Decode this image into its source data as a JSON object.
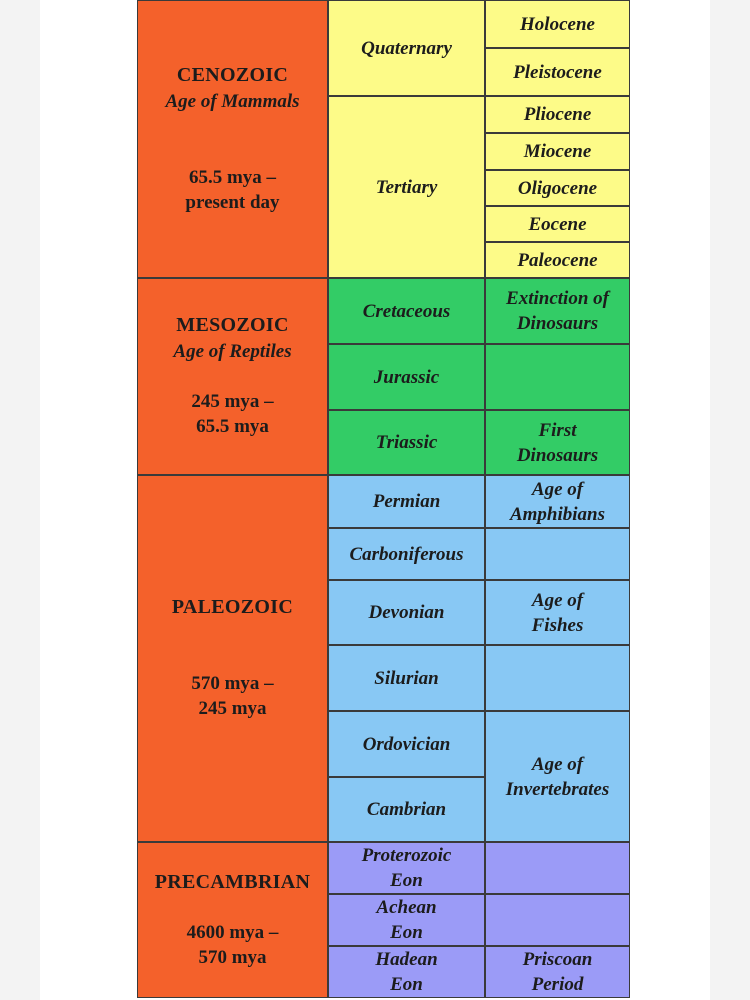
{
  "eras": [
    {
      "name": "CENOZOIC",
      "subtitle": "Age of Mammals",
      "dates": "65.5 mya –\npresent day",
      "color": "#fdfb88",
      "periods": [
        "Quaternary",
        "Tertiary"
      ],
      "epochs": [
        "Holocene",
        "Pleistocene",
        "Pliocene",
        "Miocene",
        "Oligocene",
        "Eocene",
        "Paleocene"
      ]
    },
    {
      "name": "MESOZOIC",
      "subtitle": "Age of Reptiles",
      "dates": "245 mya –\n65.5 mya",
      "color": "#33cc66",
      "periods": [
        "Cretaceous",
        "Jurassic",
        "Triassic"
      ],
      "epochs": [
        "Extinction of\nDinosaurs",
        null,
        "First\nDinosaurs"
      ]
    },
    {
      "name": "PALEOZOIC",
      "dates": "570 mya –\n245 mya",
      "color": "#88c8f4",
      "periods": [
        "Permian",
        "Carboniferous",
        "Devonian",
        "Silurian",
        "Ordovician",
        "Cambrian"
      ],
      "epochs": [
        "Age of\nAmphibians",
        null,
        "Age of\nFishes",
        null,
        "Age of\nInvertebrates"
      ]
    },
    {
      "name": "PRECAMBRIAN",
      "dates": "4600 mya –\n570 mya",
      "color": "#9b9bf7",
      "periods": [
        "Proterozoic\nEon",
        "Achean\nEon",
        "Hadean\nEon"
      ],
      "epochs": [
        null,
        null,
        "Priscoan\nPeriod"
      ]
    }
  ]
}
